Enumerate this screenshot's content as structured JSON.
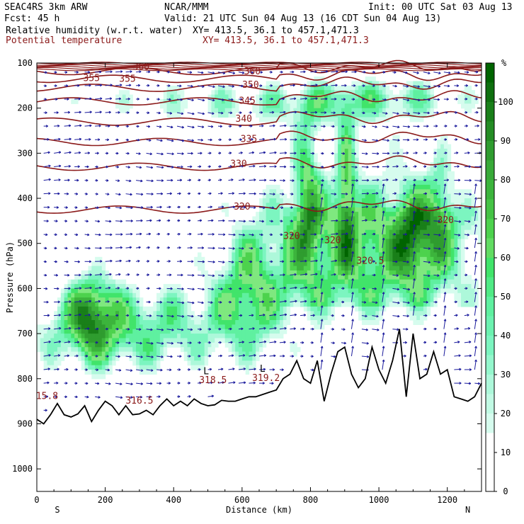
{
  "header": {
    "model": "SEAC4RS  3km ARW",
    "org": "NCAR/MMM",
    "init": "Init: 00 UTC Sat 03 Aug 13",
    "fcst": "Fcst:   45 h",
    "valid": "Valid: 21 UTC Sun 04 Aug 13 (16 CDT Sun 04 Aug 13)",
    "field1": "Relative humidity (w.r.t. water)",
    "field1_xy": "XY= 413.5, 36.1 to 457.1,471.3",
    "field2": "Potential temperature",
    "field2_xy": "XY= 413.5, 36.1 to 457.1,471.3"
  },
  "chart_data": {
    "type": "heatmap",
    "xlabel": "Distance (km)",
    "ylabel": "Pressure (hPa)",
    "xlim": [
      0,
      1300
    ],
    "ylim": [
      1050,
      100
    ],
    "x_ticks": [
      0,
      200,
      400,
      600,
      800,
      1000,
      1200
    ],
    "y_ticks": [
      100,
      200,
      300,
      400,
      500,
      600,
      700,
      800,
      900,
      1000
    ],
    "end_labels": {
      "left": "S",
      "right": "N"
    },
    "colorbar": {
      "unit": "%",
      "ticks": [
        100,
        90,
        80,
        70,
        60,
        50,
        40,
        30,
        20,
        10,
        0
      ],
      "levels": [
        {
          "lo": 100,
          "color": "#006400"
        },
        {
          "lo": 95,
          "color": "#197f19"
        },
        {
          "lo": 90,
          "color": "#2f9c2f"
        },
        {
          "lo": 85,
          "color": "#3cb43c"
        },
        {
          "lo": 80,
          "color": "#4dd24d"
        },
        {
          "lo": 75,
          "color": "#7fe87f"
        },
        {
          "lo": 70,
          "color": "#41e46a"
        },
        {
          "lo": 65,
          "color": "#5ff0a0"
        },
        {
          "lo": 60,
          "color": "#7cf5c0"
        },
        {
          "lo": 55,
          "color": "#adf8da"
        },
        {
          "lo": 50,
          "color": "#d6fcee"
        },
        {
          "lo": 45,
          "color": "#ffffff"
        }
      ]
    },
    "theta_contours": [
      {
        "label": "360",
        "p": 118
      },
      {
        "label": "355",
        "p": 135
      },
      {
        "label": "350",
        "p": 155
      },
      {
        "label": "345",
        "p": 185
      },
      {
        "label": "340",
        "p": 230
      },
      {
        "label": "335",
        "p": 275
      },
      {
        "label": "330",
        "p": 330
      },
      {
        "label": "320",
        "p": 425
      }
    ],
    "contour_labels": [
      {
        "text": "360",
        "x": 305,
        "p": 115
      },
      {
        "text": "355",
        "x": 160,
        "p": 140
      },
      {
        "text": "355",
        "x": 265,
        "p": 142
      },
      {
        "text": "360",
        "x": 630,
        "p": 125
      },
      {
        "text": "350",
        "x": 625,
        "p": 155
      },
      {
        "text": "345",
        "x": 615,
        "p": 190
      },
      {
        "text": "340",
        "x": 605,
        "p": 230
      },
      {
        "text": "335",
        "x": 620,
        "p": 275
      },
      {
        "text": "330",
        "x": 590,
        "p": 330
      },
      {
        "text": "320",
        "x": 600,
        "p": 425
      },
      {
        "text": "320",
        "x": 745,
        "p": 490
      },
      {
        "text": "320",
        "x": 865,
        "p": 500
      },
      {
        "text": "320.5",
        "x": 975,
        "p": 545
      },
      {
        "text": "320",
        "x": 1195,
        "p": 455
      },
      {
        "text": "318.5",
        "x": 515,
        "p": 810
      },
      {
        "text": "319.2",
        "x": 670,
        "p": 805
      },
      {
        "text": "316.5",
        "x": 300,
        "p": 855
      },
      {
        "text": "15.8",
        "x": 30,
        "p": 845
      }
    ],
    "low_marks": [
      {
        "text": "L",
        "x": 495,
        "p": 790
      },
      {
        "text": "L",
        "x": 660,
        "p": 785
      }
    ],
    "terrain": {
      "x": [
        0,
        20,
        40,
        60,
        80,
        100,
        120,
        140,
        160,
        180,
        200,
        220,
        240,
        260,
        280,
        300,
        320,
        340,
        360,
        380,
        400,
        420,
        440,
        460,
        480,
        500,
        520,
        540,
        560,
        580,
        600,
        620,
        640,
        660,
        680,
        700,
        720,
        740,
        760,
        780,
        800,
        820,
        840,
        860,
        880,
        900,
        920,
        940,
        960,
        980,
        1000,
        1020,
        1040,
        1060,
        1080,
        1100,
        1120,
        1140,
        1160,
        1180,
        1200,
        1220,
        1240,
        1260,
        1280,
        1300
      ],
      "p": [
        890,
        900,
        880,
        855,
        880,
        885,
        878,
        860,
        895,
        870,
        850,
        860,
        880,
        860,
        880,
        878,
        870,
        880,
        860,
        845,
        860,
        850,
        860,
        845,
        855,
        860,
        858,
        848,
        850,
        850,
        845,
        840,
        840,
        835,
        830,
        825,
        800,
        790,
        760,
        800,
        810,
        760,
        850,
        790,
        740,
        730,
        790,
        820,
        800,
        730,
        780,
        810,
        760,
        690,
        840,
        700,
        800,
        790,
        740,
        790,
        780,
        840,
        845,
        850,
        840,
        810
      ]
    }
  }
}
